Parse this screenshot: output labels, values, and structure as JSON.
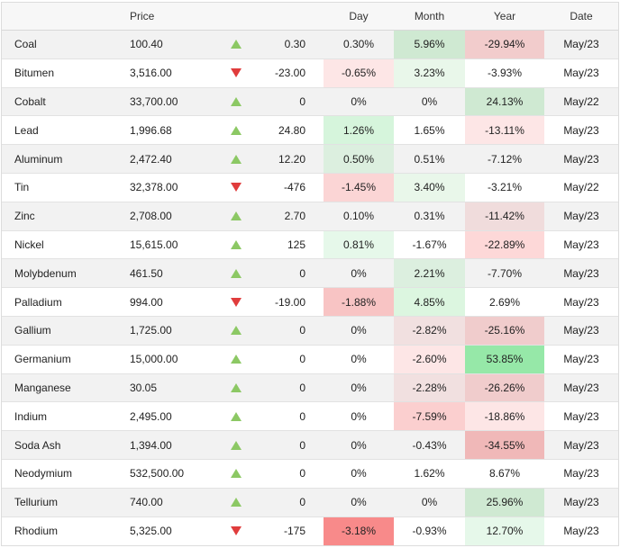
{
  "header": {
    "name": "",
    "price": "Price",
    "arrow": "",
    "change": "",
    "day": "Day",
    "month": "Month",
    "year": "Year",
    "date": "Date"
  },
  "rows": [
    {
      "name": "Coal",
      "price": "100.40",
      "dir": "up",
      "change": "0.30",
      "day": "0.30%",
      "month": "5.96%",
      "year": "-29.94%",
      "date": "May/23",
      "day_bg": "",
      "month_bg": "#cfe9d2",
      "year_bg": "#f2cccc"
    },
    {
      "name": "Bitumen",
      "price": "3,516.00",
      "dir": "down",
      "change": "-23.00",
      "day": "-0.65%",
      "month": "3.23%",
      "year": "-3.93%",
      "date": "May/23",
      "day_bg": "#fde6e6",
      "month_bg": "#e9f7ea",
      "year_bg": ""
    },
    {
      "name": "Cobalt",
      "price": "33,700.00",
      "dir": "up",
      "change": "0",
      "day": "0%",
      "month": "0%",
      "year": "24.13%",
      "date": "May/22",
      "day_bg": "",
      "month_bg": "",
      "year_bg": "#cfe9d2"
    },
    {
      "name": "Lead",
      "price": "1,996.68",
      "dir": "up",
      "change": "24.80",
      "day": "1.26%",
      "month": "1.65%",
      "year": "-13.11%",
      "date": "May/23",
      "day_bg": "#d6f5dc",
      "month_bg": "",
      "year_bg": "#fde6e6"
    },
    {
      "name": "Aluminum",
      "price": "2,472.40",
      "dir": "up",
      "change": "12.20",
      "day": "0.50%",
      "month": "0.51%",
      "year": "-7.12%",
      "date": "May/23",
      "day_bg": "#dcefdf",
      "month_bg": "",
      "year_bg": ""
    },
    {
      "name": "Tin",
      "price": "32,378.00",
      "dir": "down",
      "change": "-476",
      "day": "-1.45%",
      "month": "3.40%",
      "year": "-3.21%",
      "date": "May/22",
      "day_bg": "#fbd5d5",
      "month_bg": "#e9f7ea",
      "year_bg": ""
    },
    {
      "name": "Zinc",
      "price": "2,708.00",
      "dir": "up",
      "change": "2.70",
      "day": "0.10%",
      "month": "0.31%",
      "year": "-11.42%",
      "date": "May/23",
      "day_bg": "",
      "month_bg": "",
      "year_bg": "#f0dcdc"
    },
    {
      "name": "Nickel",
      "price": "15,615.00",
      "dir": "up",
      "change": "125",
      "day": "0.81%",
      "month": "-1.67%",
      "year": "-22.89%",
      "date": "May/23",
      "day_bg": "#e6f8ea",
      "month_bg": "",
      "year_bg": "#fdd8d8"
    },
    {
      "name": "Molybdenum",
      "price": "461.50",
      "dir": "up",
      "change": "0",
      "day": "0%",
      "month": "2.21%",
      "year": "-7.70%",
      "date": "May/23",
      "day_bg": "",
      "month_bg": "#dcefdf",
      "year_bg": ""
    },
    {
      "name": "Palladium",
      "price": "994.00",
      "dir": "down",
      "change": "-19.00",
      "day": "-1.88%",
      "month": "4.85%",
      "year": "2.69%",
      "date": "May/23",
      "day_bg": "#f8c4c4",
      "month_bg": "#dcf6e0",
      "year_bg": ""
    },
    {
      "name": "Gallium",
      "price": "1,725.00",
      "dir": "up",
      "change": "0",
      "day": "0%",
      "month": "-2.82%",
      "year": "-25.16%",
      "date": "May/23",
      "day_bg": "",
      "month_bg": "#f1e0e0",
      "year_bg": "#f0cccc"
    },
    {
      "name": "Germanium",
      "price": "15,000.00",
      "dir": "up",
      "change": "0",
      "day": "0%",
      "month": "-2.60%",
      "year": "53.85%",
      "date": "May/23",
      "day_bg": "",
      "month_bg": "#fde6e6",
      "year_bg": "#96e8a8"
    },
    {
      "name": "Manganese",
      "price": "30.05",
      "dir": "up",
      "change": "0",
      "day": "0%",
      "month": "-2.28%",
      "year": "-26.26%",
      "date": "May/23",
      "day_bg": "",
      "month_bg": "#f1e0e0",
      "year_bg": "#f0cccc"
    },
    {
      "name": "Indium",
      "price": "2,495.00",
      "dir": "up",
      "change": "0",
      "day": "0%",
      "month": "-7.59%",
      "year": "-18.86%",
      "date": "May/23",
      "day_bg": "",
      "month_bg": "#fbcfcf",
      "year_bg": "#fde6e6"
    },
    {
      "name": "Soda Ash",
      "price": "1,394.00",
      "dir": "up",
      "change": "0",
      "day": "0%",
      "month": "-0.43%",
      "year": "-34.55%",
      "date": "May/23",
      "day_bg": "",
      "month_bg": "",
      "year_bg": "#f0b8b8"
    },
    {
      "name": "Neodymium",
      "price": "532,500.00",
      "dir": "up",
      "change": "0",
      "day": "0%",
      "month": "1.62%",
      "year": "8.67%",
      "date": "May/23",
      "day_bg": "",
      "month_bg": "",
      "year_bg": ""
    },
    {
      "name": "Tellurium",
      "price": "740.00",
      "dir": "up",
      "change": "0",
      "day": "0%",
      "month": "0%",
      "year": "25.96%",
      "date": "May/23",
      "day_bg": "",
      "month_bg": "",
      "year_bg": "#cfe9d2"
    },
    {
      "name": "Rhodium",
      "price": "5,325.00",
      "dir": "down",
      "change": "-175",
      "day": "-3.18%",
      "month": "-0.93%",
      "year": "12.70%",
      "date": "May/23",
      "day_bg": "#f88a8a",
      "month_bg": "",
      "year_bg": "#e6f8ea"
    }
  ]
}
